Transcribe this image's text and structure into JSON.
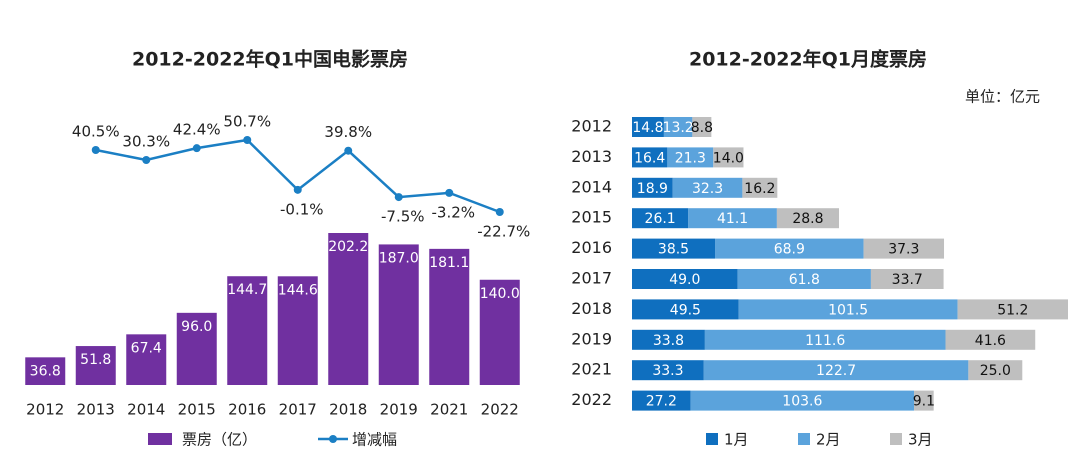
{
  "chart_data": [
    {
      "type": "bar",
      "title": "2012-2022年Q1中国电影票房",
      "categories": [
        "2012",
        "2013",
        "2014",
        "2015",
        "2016",
        "2017",
        "2018",
        "2019",
        "2021",
        "2022"
      ],
      "series": [
        {
          "name": "票房（亿）",
          "type": "bar",
          "color": "#7030a0",
          "values": [
            36.8,
            51.8,
            67.4,
            96.0,
            144.7,
            144.6,
            202.2,
            187.0,
            181.1,
            140.0
          ],
          "value_labels": [
            "36.8",
            "51.8",
            "67.4",
            "96.0",
            "144.7",
            "144.6",
            "202.2",
            "187.0",
            "181.1",
            "140.0"
          ]
        },
        {
          "name": "增减幅",
          "type": "line",
          "color": "#1b7fc4",
          "values": [
            null,
            40.5,
            30.3,
            42.4,
            50.7,
            -0.1,
            39.8,
            -7.5,
            -3.2,
            -22.7
          ],
          "value_labels": [
            null,
            "40.5%",
            "30.3%",
            "42.4%",
            "50.7%",
            "-0.1%",
            "39.8%",
            "-7.5%",
            "-3.2%",
            "-22.7%"
          ]
        }
      ]
    },
    {
      "type": "stacked_bar",
      "title": "2012-2022年Q1月度票房",
      "subtitle": "单位：亿元",
      "categories": [
        "2012",
        "2013",
        "2014",
        "2015",
        "2016",
        "2017",
        "2018",
        "2019",
        "2021",
        "2022"
      ],
      "series": [
        {
          "name": "1月",
          "color": "#0f6fbf",
          "label_color": "#ffffff",
          "values": [
            14.8,
            16.4,
            18.9,
            26.1,
            38.5,
            49.0,
            49.5,
            33.8,
            33.3,
            27.2
          ],
          "value_labels": [
            "14.8",
            "16.4",
            "18.9",
            "26.1",
            "38.5",
            "49.0",
            "49.5",
            "33.8",
            "33.3",
            "27.2"
          ]
        },
        {
          "name": "2月",
          "color": "#5ba3dc",
          "label_color": "#ffffff",
          "values": [
            13.2,
            21.3,
            32.3,
            41.1,
            68.9,
            61.8,
            101.5,
            111.6,
            122.7,
            103.6
          ],
          "value_labels": [
            "13.2",
            "21.3",
            "32.3",
            "41.1",
            "68.9",
            "61.8",
            "101.5",
            "111.6",
            "122.7",
            "103.6"
          ]
        },
        {
          "name": "3月",
          "color": "#bfbfbf",
          "label_color": "#111111",
          "values": [
            8.8,
            14.0,
            16.2,
            28.8,
            37.3,
            33.7,
            51.2,
            41.6,
            25.0,
            9.1
          ],
          "value_labels": [
            "8.8",
            "14.0",
            "16.2",
            "28.8",
            "37.3",
            "33.7",
            "51.2",
            "41.6",
            "25.0",
            "9.1"
          ]
        }
      ]
    }
  ]
}
